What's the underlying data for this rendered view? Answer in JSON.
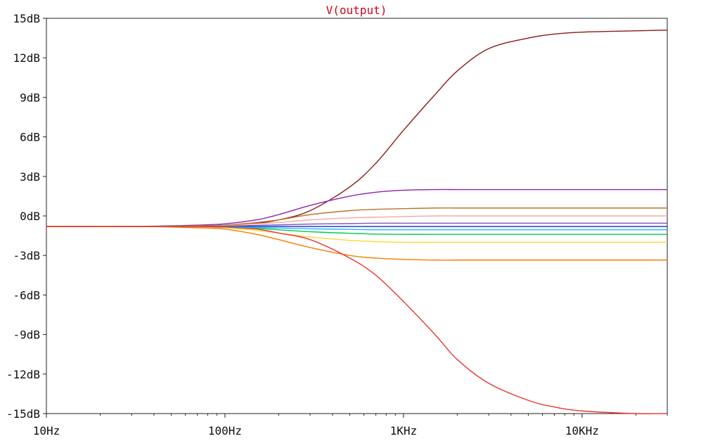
{
  "chart_data": {
    "type": "line",
    "title": "V(output)",
    "title_color": "#d0021b",
    "x_scale": "log",
    "xlim": [
      10,
      30000
    ],
    "ylim": [
      -15,
      15
    ],
    "x_tick_values": [
      10,
      100,
      1000,
      10000
    ],
    "x_tick_labels": [
      "10Hz",
      "100Hz",
      "1KHz",
      "10KHz"
    ],
    "y_tick_values": [
      15,
      12,
      9,
      6,
      3,
      0,
      -3,
      -6,
      -9,
      -12,
      -15
    ],
    "y_tick_labels": [
      "15dB",
      "12dB",
      "9dB",
      "6dB",
      "3dB",
      "0dB",
      "-3dB",
      "-6dB",
      "-9dB",
      "-12dB",
      "-15dB"
    ],
    "grid": false,
    "x": [
      10,
      20,
      40,
      70,
      100,
      150,
      200,
      300,
      500,
      700,
      1000,
      1500,
      2000,
      3000,
      5000,
      7000,
      10000,
      20000,
      30000
    ],
    "series": [
      {
        "color": "#8b1a1a",
        "values": [
          -0.8,
          -0.8,
          -0.8,
          -0.78,
          -0.7,
          -0.55,
          -0.3,
          0.4,
          2.2,
          4.0,
          6.5,
          9.2,
          11.0,
          12.7,
          13.5,
          13.8,
          13.95,
          14.05,
          14.1
        ]
      },
      {
        "color": "#8e24aa",
        "values": [
          -0.8,
          -0.8,
          -0.78,
          -0.7,
          -0.6,
          -0.3,
          0.1,
          0.8,
          1.5,
          1.8,
          1.95,
          2.0,
          2.0,
          2.0,
          2.0,
          2.0,
          2.0,
          2.0,
          2.0
        ]
      },
      {
        "color": "#b8762e",
        "values": [
          -0.8,
          -0.8,
          -0.79,
          -0.75,
          -0.7,
          -0.5,
          -0.3,
          0.1,
          0.4,
          0.5,
          0.55,
          0.6,
          0.6,
          0.6,
          0.6,
          0.6,
          0.6,
          0.6,
          0.6
        ]
      },
      {
        "color": "#f5a9a0",
        "values": [
          -0.8,
          -0.8,
          -0.8,
          -0.78,
          -0.75,
          -0.6,
          -0.5,
          -0.3,
          -0.15,
          -0.1,
          -0.05,
          0.0,
          0.0,
          0.0,
          0.0,
          0.0,
          0.0,
          0.0,
          0.0
        ]
      },
      {
        "color": "#7e57c2",
        "values": [
          -0.8,
          -0.8,
          -0.8,
          -0.8,
          -0.78,
          -0.72,
          -0.68,
          -0.62,
          -0.58,
          -0.55,
          -0.55,
          -0.55,
          -0.55,
          -0.55,
          -0.55,
          -0.55,
          -0.55,
          -0.55,
          -0.55
        ]
      },
      {
        "color": "#1e3fd8",
        "values": [
          -0.8,
          -0.8,
          -0.8,
          -0.8,
          -0.8,
          -0.8,
          -0.8,
          -0.8,
          -0.8,
          -0.8,
          -0.8,
          -0.8,
          -0.8,
          -0.8,
          -0.8,
          -0.8,
          -0.8,
          -0.8,
          -0.8
        ]
      },
      {
        "color": "#29b6f6",
        "values": [
          -0.8,
          -0.8,
          -0.8,
          -0.8,
          -0.82,
          -0.88,
          -0.92,
          -0.98,
          -1.02,
          -1.05,
          -1.05,
          -1.05,
          -1.05,
          -1.05,
          -1.05,
          -1.05,
          -1.05,
          -1.05,
          -1.05
        ]
      },
      {
        "color": "#00c853",
        "values": [
          -0.8,
          -0.8,
          -0.8,
          -0.8,
          -0.85,
          -0.95,
          -1.05,
          -1.2,
          -1.32,
          -1.38,
          -1.4,
          -1.4,
          -1.4,
          -1.4,
          -1.4,
          -1.4,
          -1.4,
          -1.4,
          -1.4
        ]
      },
      {
        "color": "#fdd835",
        "values": [
          -0.8,
          -0.8,
          -0.81,
          -0.85,
          -0.9,
          -1.1,
          -1.3,
          -1.6,
          -1.85,
          -1.95,
          -2.0,
          -2.0,
          -2.0,
          -2.0,
          -2.0,
          -2.0,
          -2.0,
          -2.0,
          -2.0
        ]
      },
      {
        "color": "#f57c00",
        "values": [
          -0.8,
          -0.8,
          -0.82,
          -0.9,
          -1.0,
          -1.4,
          -1.8,
          -2.4,
          -3.0,
          -3.2,
          -3.3,
          -3.35,
          -3.35,
          -3.35,
          -3.35,
          -3.35,
          -3.35,
          -3.35,
          -3.35
        ]
      },
      {
        "color": "#e53935",
        "values": [
          -0.8,
          -0.8,
          -0.8,
          -0.8,
          -0.85,
          -1.0,
          -1.3,
          -1.8,
          -3.2,
          -4.5,
          -6.5,
          -9.0,
          -10.9,
          -12.7,
          -14.0,
          -14.5,
          -14.8,
          -15.0,
          -15.0
        ]
      }
    ]
  }
}
